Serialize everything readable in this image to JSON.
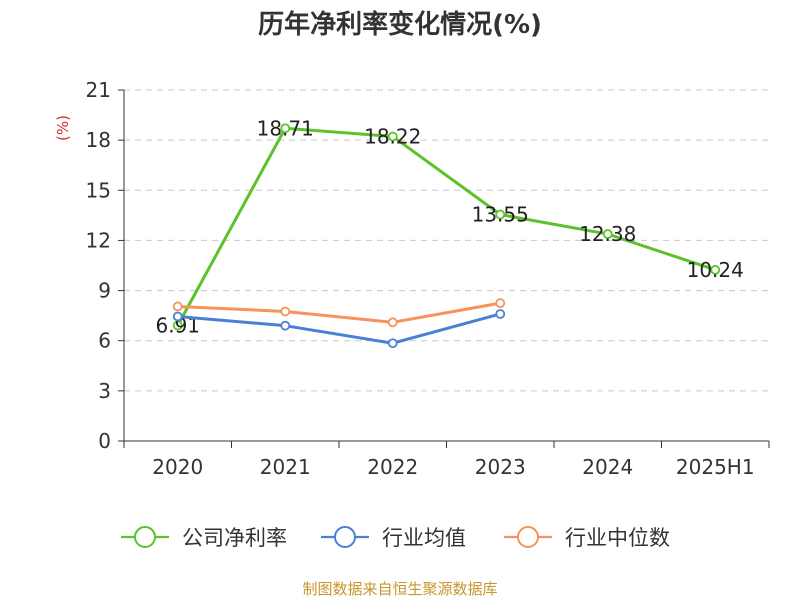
{
  "chart_data": {
    "type": "line",
    "title": "历年净利率变化情况(%)",
    "ylabel": "(%)",
    "xlabel": "",
    "categories": [
      "2020",
      "2021",
      "2022",
      "2023",
      "2024",
      "2025H1"
    ],
    "ylim": [
      0,
      21
    ],
    "yticks": [
      0,
      3,
      6,
      9,
      12,
      15,
      18,
      21
    ],
    "grid": true,
    "legend_position": "bottom",
    "series": [
      {
        "name": "公司净利率",
        "color": "#5bc22a",
        "values": [
          6.91,
          18.71,
          18.22,
          13.55,
          12.38,
          10.24
        ],
        "labels": [
          "6.91",
          "18.71",
          "18.22",
          "13.55",
          "12.38",
          "10.24"
        ]
      },
      {
        "name": "行业均值",
        "color": "#4a7fd6",
        "values": [
          7.45,
          6.9,
          5.85,
          7.6,
          null,
          null
        ]
      },
      {
        "name": "行业中位数",
        "color": "#f5935a",
        "values": [
          8.05,
          7.75,
          7.1,
          8.25,
          null,
          null
        ]
      }
    ],
    "source": "制图数据来自恒生聚源数据库"
  }
}
